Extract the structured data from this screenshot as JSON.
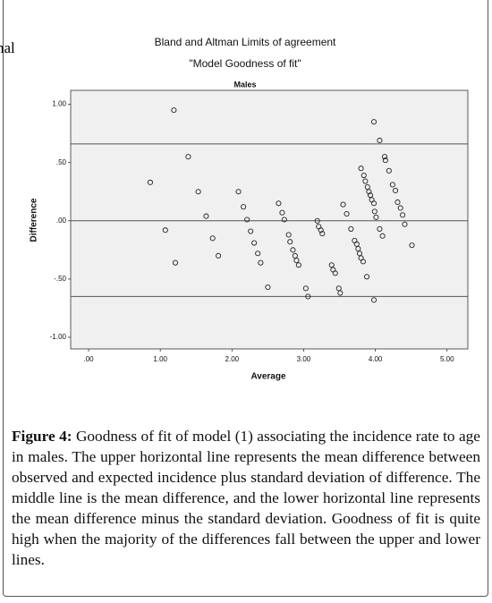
{
  "side_text": "nal",
  "chart_data": {
    "type": "scatter",
    "title": "Bland and Altman Limits of agreement",
    "subtitle": "\"Model Goodness of fit\"",
    "panel_title": "Males",
    "x_label": "Average",
    "y_label": "Difference",
    "xlim": [
      -0.25,
      5.29
    ],
    "ylim": [
      -1.1,
      1.12
    ],
    "xticks": [
      {
        "value": 0,
        "label": ".00"
      },
      {
        "value": 1,
        "label": "1.00"
      },
      {
        "value": 2,
        "label": "2.00"
      },
      {
        "value": 3,
        "label": "3.00"
      },
      {
        "value": 4,
        "label": "4.00"
      },
      {
        "value": 5,
        "label": "5.00"
      }
    ],
    "yticks": [
      {
        "value": 1,
        "label": "1.00"
      },
      {
        "value": 0.5,
        "label": ".50"
      },
      {
        "value": 0,
        "label": ".00"
      },
      {
        "value": -0.5,
        "label": "-.50"
      },
      {
        "value": -1,
        "label": "-1.00"
      }
    ],
    "hlines": [
      0.66,
      0,
      -0.65
    ],
    "color": "#222222",
    "x": [
      1.19,
      1.39,
      0.86,
      1.53,
      1.07,
      1.21,
      1.64,
      1.73,
      1.81,
      2.09,
      2.16,
      2.21,
      2.26,
      2.31,
      2.36,
      2.4,
      2.5,
      2.65,
      2.7,
      2.73,
      2.79,
      2.81,
      2.85,
      2.88,
      2.9,
      2.93,
      3.03,
      3.06,
      3.19,
      3.21,
      3.24,
      3.26,
      3.39,
      3.41,
      3.44,
      3.49,
      3.51,
      3.55,
      3.6,
      3.66,
      3.71,
      3.74,
      3.76,
      3.78,
      3.8,
      3.83,
      3.88,
      3.8,
      3.84,
      3.86,
      3.89,
      3.91,
      3.93,
      3.95,
      3.98,
      3.99,
      4.01,
      3.98,
      4.06,
      4.13,
      4.14,
      4.19,
      4.24,
      4.28,
      4.31,
      4.35,
      4.38,
      4.41,
      4.51,
      4.06,
      4.1,
      3.98
    ],
    "values": [
      0.95,
      0.55,
      0.33,
      0.25,
      -0.08,
      -0.36,
      0.04,
      -0.15,
      -0.3,
      0.25,
      0.12,
      0.01,
      -0.09,
      -0.19,
      -0.28,
      -0.36,
      -0.57,
      0.15,
      0.07,
      0.01,
      -0.12,
      -0.18,
      -0.25,
      -0.3,
      -0.34,
      -0.38,
      -0.58,
      -0.65,
      0.0,
      -0.05,
      -0.08,
      -0.11,
      -0.38,
      -0.42,
      -0.45,
      -0.58,
      -0.62,
      0.14,
      0.06,
      -0.07,
      -0.17,
      -0.2,
      -0.24,
      -0.28,
      -0.32,
      -0.35,
      -0.48,
      0.45,
      0.39,
      0.34,
      0.29,
      0.25,
      0.22,
      0.18,
      0.15,
      0.08,
      0.03,
      0.85,
      0.69,
      0.55,
      0.52,
      0.43,
      0.31,
      0.26,
      0.16,
      0.11,
      0.05,
      -0.03,
      -0.21,
      -0.07,
      -0.13,
      -0.68
    ]
  },
  "caption": {
    "label": "Figure 4:",
    "text": "Goodness of fit of model (1) associating the incidence rate to age in males. The upper horizontal line represents the mean difference between observed and expected incidence plus standard deviation of difference. The middle line is the mean difference, and the lower horizontal line represents the mean difference minus the standard deviation. Goodness of fit is quite high when the majority of the differences fall between the upper and lower lines."
  }
}
